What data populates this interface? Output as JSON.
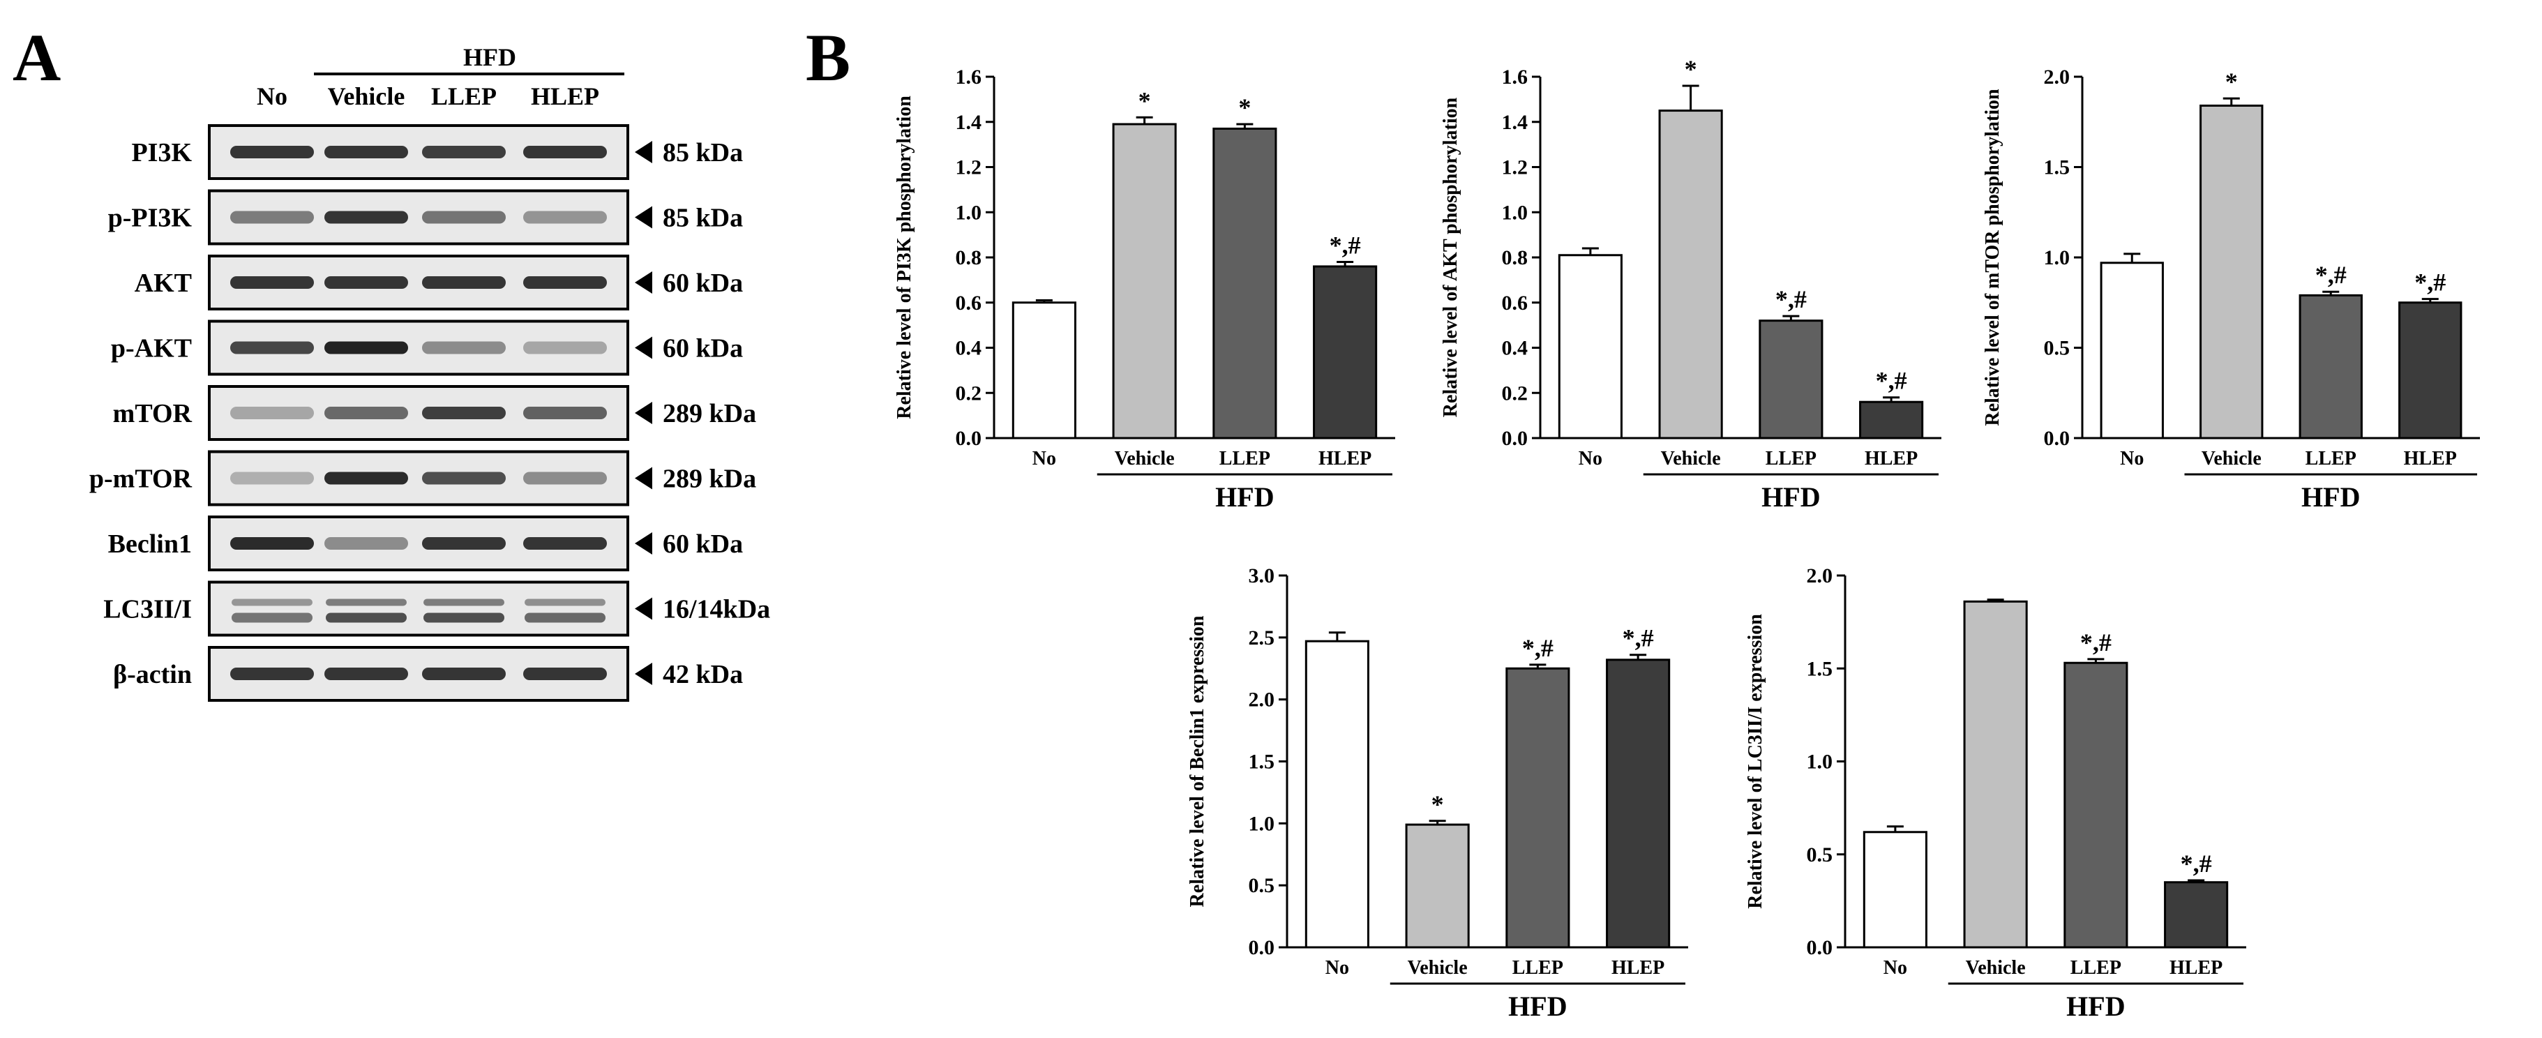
{
  "panel_a": {
    "letter": "A",
    "group_label": "HFD",
    "lanes": [
      "No",
      "Vehicle",
      "LLEP",
      "HLEP"
    ],
    "rows": [
      {
        "protein": "PI3K",
        "size": "85 kDa",
        "intensity": [
          0.85,
          0.85,
          0.8,
          0.85
        ],
        "style": "single"
      },
      {
        "protein": "p-PI3K",
        "size": "85 kDa",
        "intensity": [
          0.45,
          0.85,
          0.5,
          0.3
        ],
        "style": "single"
      },
      {
        "protein": "AKT",
        "size": "60 kDa",
        "intensity": [
          0.85,
          0.85,
          0.85,
          0.85
        ],
        "style": "single"
      },
      {
        "protein": "p-AKT",
        "size": "60 kDa",
        "intensity": [
          0.75,
          0.95,
          0.35,
          0.2
        ],
        "style": "single"
      },
      {
        "protein": "mTOR",
        "size": "289 kDa",
        "intensity": [
          0.2,
          0.55,
          0.8,
          0.6
        ],
        "style": "single"
      },
      {
        "protein": "p-mTOR",
        "size": "289 kDa",
        "intensity": [
          0.15,
          0.9,
          0.7,
          0.35
        ],
        "style": "single"
      },
      {
        "protein": "Beclin1",
        "size": "60 kDa",
        "intensity": [
          0.9,
          0.35,
          0.85,
          0.85
        ],
        "style": "single"
      },
      {
        "protein": "LC3II/I",
        "size": "16/14kDa",
        "intensity": [
          0.5,
          0.7,
          0.7,
          0.55
        ],
        "style": "double"
      },
      {
        "protein": "β-actin",
        "size": "42 kDa",
        "intensity": [
          0.85,
          0.85,
          0.85,
          0.85
        ],
        "style": "single"
      }
    ]
  },
  "panel_b": {
    "letter": "B"
  },
  "colors": {
    "No": "#ffffff",
    "Vehicle": "#c0c0c0",
    "LLEP": "#606060",
    "HLEP": "#3c3c3c",
    "axis": "#000000",
    "band": "#1a1a1a",
    "blot_bg": "#e9e9e9"
  },
  "chart_data": [
    {
      "type": "bar",
      "ylabel": "Relative level of PI3K phosphorylation",
      "group_label": "HFD",
      "categories": [
        "No",
        "Vehicle",
        "LLEP",
        "HLEP"
      ],
      "values": [
        0.6,
        1.39,
        1.37,
        0.76
      ],
      "errors": [
        0.01,
        0.03,
        0.02,
        0.02
      ],
      "annotations": [
        "",
        "*",
        "*",
        "*,#"
      ],
      "ylim": [
        0,
        1.6
      ],
      "yticks": [
        0,
        0.2,
        0.4,
        0.6,
        0.8,
        1.0,
        1.2,
        1.4,
        1.6
      ],
      "ytick_labels": [
        "0.0",
        "0.2",
        "0.4",
        "0.6",
        "0.8",
        "1.0",
        "1.2",
        "1.4",
        "1.6"
      ]
    },
    {
      "type": "bar",
      "ylabel": "Relative level of AKT phosphorylation",
      "group_label": "HFD",
      "categories": [
        "No",
        "Vehicle",
        "LLEP",
        "HLEP"
      ],
      "values": [
        0.81,
        1.45,
        0.52,
        0.16
      ],
      "errors": [
        0.03,
        0.11,
        0.02,
        0.02
      ],
      "annotations": [
        "",
        "*",
        "*,#",
        "*,#"
      ],
      "ylim": [
        0,
        1.6
      ],
      "yticks": [
        0,
        0.2,
        0.4,
        0.6,
        0.8,
        1.0,
        1.2,
        1.4,
        1.6
      ],
      "ytick_labels": [
        "0.0",
        "0.2",
        "0.4",
        "0.6",
        "0.8",
        "1.0",
        "1.2",
        "1.4",
        "1.6"
      ]
    },
    {
      "type": "bar",
      "ylabel": "Relative level of mTOR phosphorylation",
      "group_label": "HFD",
      "categories": [
        "No",
        "Vehicle",
        "LLEP",
        "HLEP"
      ],
      "values": [
        0.97,
        1.84,
        0.79,
        0.75
      ],
      "errors": [
        0.05,
        0.04,
        0.02,
        0.02
      ],
      "annotations": [
        "",
        "*",
        "*,#",
        "*,#"
      ],
      "ylim": [
        0,
        2.0
      ],
      "yticks": [
        0,
        0.5,
        1.0,
        1.5,
        2.0
      ],
      "ytick_labels": [
        "0.0",
        "0.5",
        "1.0",
        "1.5",
        "2.0"
      ]
    },
    {
      "type": "bar",
      "ylabel": "Relative level of Beclin1 expression",
      "group_label": "HFD",
      "categories": [
        "No",
        "Vehicle",
        "LLEP",
        "HLEP"
      ],
      "values": [
        2.47,
        0.99,
        2.25,
        2.32
      ],
      "errors": [
        0.07,
        0.03,
        0.03,
        0.04
      ],
      "annotations": [
        "",
        "*",
        "*,#",
        "*,#"
      ],
      "ylim": [
        0,
        3.0
      ],
      "yticks": [
        0,
        0.5,
        1.0,
        1.5,
        2.0,
        2.5,
        3.0
      ],
      "ytick_labels": [
        "0.0",
        "0.5",
        "1.0",
        "1.5",
        "2.0",
        "2.5",
        "3.0"
      ]
    },
    {
      "type": "bar",
      "ylabel": "Relative level of LC3II/I expression",
      "group_label": "HFD",
      "categories": [
        "No",
        "Vehicle",
        "LLEP",
        "HLEP"
      ],
      "values": [
        0.62,
        1.86,
        1.53,
        0.35
      ],
      "errors": [
        0.03,
        0.01,
        0.02,
        0.01
      ],
      "annotations": [
        "",
        "",
        "*,#",
        "*,#"
      ],
      "ylim": [
        0,
        2.0
      ],
      "yticks": [
        0,
        0.5,
        1.0,
        1.5,
        2.0
      ],
      "ytick_labels": [
        "0.0",
        "0.5",
        "1.0",
        "1.5",
        "2.0"
      ]
    }
  ]
}
